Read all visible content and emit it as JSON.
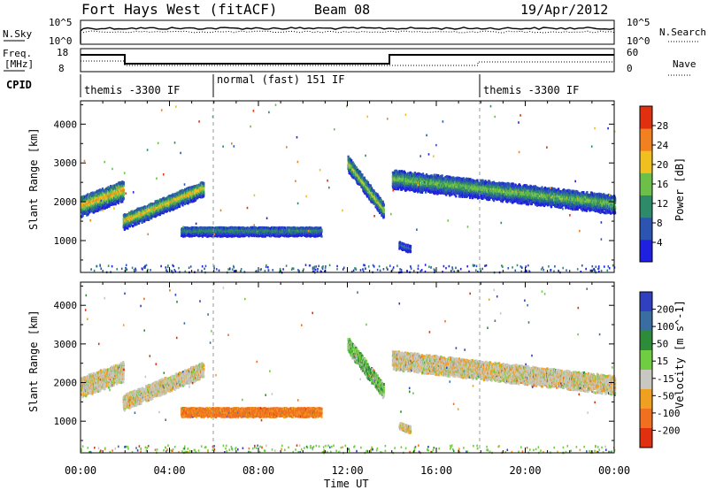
{
  "header": {
    "station": "Fort Hays West (fitACF)",
    "beam": "Beam 08",
    "date": "19/Apr/2012"
  },
  "top_panels": {
    "nsky": {
      "label": "N.Sky",
      "ticks": [
        "10^5",
        "10^0"
      ]
    },
    "nsearch": {
      "label": "N.Search",
      "ticks": [
        "10^5",
        "10^0"
      ]
    },
    "freq": {
      "label_1": "Freq.",
      "label_2": "[MHz]",
      "ticks": [
        "18",
        "8"
      ]
    },
    "nave": {
      "label": "Nave",
      "ticks": [
        "60",
        "0"
      ]
    },
    "cpid": {
      "label": "CPID"
    }
  },
  "cpid_segments": [
    {
      "text": "themis -3300 IF",
      "start_hour": 0
    },
    {
      "text": "normal (fast) 151 IF",
      "start_hour": 6
    },
    {
      "text": "themis -3300 IF",
      "start_hour": 18
    }
  ],
  "colors": {
    "power": [
      "#2020e0",
      "#2b55b0",
      "#2e8b6a",
      "#6cc04a",
      "#f0c020",
      "#f08020",
      "#e03010"
    ],
    "velocity": [
      "#3040c0",
      "#3a6ea0",
      "#2e8b3a",
      "#70cc40",
      "#c8c8c0",
      "#f0a020",
      "#f07020",
      "#e03010"
    ]
  },
  "chart_data": [
    {
      "type": "heatmap",
      "name": "power",
      "ylabel": "Slant Range [km]",
      "xlabel": "Time UT",
      "x_ticks": [
        "00:00",
        "04:00",
        "08:00",
        "12:00",
        "16:00",
        "20:00",
        "00:00"
      ],
      "x_range_hours": [
        0,
        24
      ],
      "ylim": [
        180,
        4600
      ],
      "y_ticks": [
        1000,
        2000,
        3000,
        4000
      ],
      "colorbar": {
        "label": "Power [dB]",
        "ticks": [
          "4",
          "8",
          "12",
          "16",
          "20",
          "24",
          "28"
        ],
        "range": [
          0,
          30
        ]
      },
      "echo_regions": [
        {
          "t0": 0.0,
          "t1": 1.9,
          "r_center": [
            1900,
            2300
          ],
          "r_width": 450,
          "power": 22
        },
        {
          "t0": 1.9,
          "t1": 5.5,
          "r_center": [
            1500,
            2350
          ],
          "r_width": 350,
          "power": 20
        },
        {
          "t0": 4.5,
          "t1": 10.8,
          "r_center": [
            1250,
            1250
          ],
          "r_width": 220,
          "power": 12
        },
        {
          "t0": 12.0,
          "t1": 13.6,
          "r_center": [
            3000,
            1800
          ],
          "r_width": 350,
          "power": 18
        },
        {
          "t0": 14.0,
          "t1": 24.0,
          "r_center": [
            2600,
            1950
          ],
          "r_width": 420,
          "power": 16
        },
        {
          "t0": 14.3,
          "t1": 14.8,
          "r_center": [
            900,
            800
          ],
          "r_width": 180,
          "power": 8
        }
      ]
    },
    {
      "type": "heatmap",
      "name": "velocity",
      "ylabel": "Slant Range [km]",
      "xlabel": "Time UT",
      "x_ticks": [
        "00:00",
        "04:00",
        "08:00",
        "12:00",
        "16:00",
        "20:00",
        "00:00"
      ],
      "x_range_hours": [
        0,
        24
      ],
      "ylim": [
        180,
        4600
      ],
      "y_ticks": [
        1000,
        2000,
        3000,
        4000
      ],
      "colorbar": {
        "label": "Velocity [m s^-1]",
        "ticks": [
          "200",
          "100",
          "50",
          "15",
          "-15",
          "-50",
          "-100",
          "-200"
        ],
        "range": [
          -250,
          250
        ]
      },
      "echo_regions": [
        {
          "t0": 0.0,
          "t1": 1.9,
          "r_center": [
            1900,
            2300
          ],
          "r_width": 450,
          "velocity": 0
        },
        {
          "t0": 1.9,
          "t1": 5.5,
          "r_center": [
            1500,
            2350
          ],
          "r_width": 350,
          "velocity": 0
        },
        {
          "t0": 4.5,
          "t1": 10.8,
          "r_center": [
            1250,
            1250
          ],
          "r_width": 220,
          "velocity": -40
        },
        {
          "t0": 12.0,
          "t1": 13.6,
          "r_center": [
            3000,
            1800
          ],
          "r_width": 350,
          "velocity": 25
        },
        {
          "t0": 14.0,
          "t1": 24.0,
          "r_center": [
            2600,
            1950
          ],
          "r_width": 420,
          "velocity": 0
        },
        {
          "t0": 14.3,
          "t1": 14.8,
          "r_center": [
            900,
            800
          ],
          "r_width": 180,
          "velocity": 0
        }
      ]
    }
  ]
}
